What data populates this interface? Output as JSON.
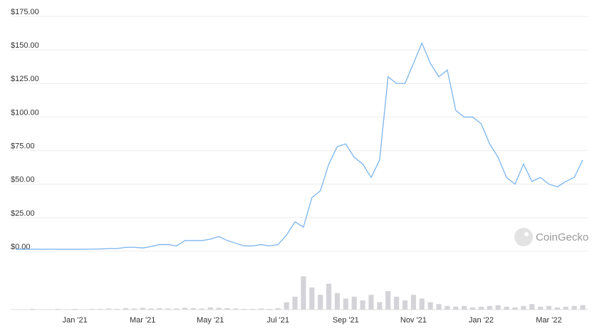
{
  "chart_data": {
    "type": "line",
    "categories": [
      null,
      null,
      null,
      null,
      null,
      null,
      null,
      "Jan '21",
      null,
      null,
      null,
      null,
      null,
      null,
      null,
      "Mar '21",
      null,
      null,
      null,
      null,
      null,
      null,
      null,
      "May '21",
      null,
      null,
      null,
      null,
      null,
      null,
      null,
      "Jul '21",
      null,
      null,
      null,
      null,
      null,
      null,
      null,
      "Sep '21",
      null,
      null,
      null,
      null,
      null,
      null,
      null,
      "Nov '21",
      null,
      null,
      null,
      null,
      null,
      null,
      null,
      "Jan '22",
      null,
      null,
      null,
      null,
      null,
      null,
      null,
      "Mar '22",
      null,
      null,
      null,
      null
    ],
    "values": [
      1.5,
      1.5,
      1.6,
      1.5,
      1.6,
      1.5,
      1.5,
      1.5,
      1.5,
      1.6,
      1.7,
      2,
      2,
      3,
      3,
      2.5,
      3.5,
      5,
      5,
      4,
      8,
      8,
      8,
      9,
      11,
      8,
      6,
      4,
      4,
      5,
      4,
      5,
      12,
      22,
      18,
      40,
      45,
      65,
      78,
      80,
      70,
      65,
      55,
      68,
      130,
      125,
      125,
      140,
      155,
      140,
      130,
      135,
      105,
      100,
      100,
      95,
      80,
      70,
      55,
      50,
      65,
      52,
      55,
      50,
      48,
      52,
      55,
      68
    ],
    "color": "#7cb5ec",
    "ylim": [
      0,
      175
    ],
    "yticks": [
      {
        "value": 0,
        "label": "$0.00"
      },
      {
        "value": 25,
        "label": "$25.00"
      },
      {
        "value": 50,
        "label": "$50.00"
      },
      {
        "value": 75,
        "label": "$75.00"
      },
      {
        "value": 100,
        "label": "$100.00"
      },
      {
        "value": 125,
        "label": "$125.00"
      },
      {
        "value": 150,
        "label": "$150.00"
      },
      {
        "value": 175,
        "label": "$175.00"
      }
    ],
    "grid": true,
    "volume": {
      "color": "#d4d4d8",
      "ylim": [
        0,
        100
      ],
      "values": [
        1,
        1,
        2,
        1,
        1,
        2,
        1,
        2,
        1,
        2,
        2,
        3,
        2,
        4,
        3,
        5,
        3,
        4,
        3,
        3,
        5,
        4,
        3,
        6,
        5,
        4,
        3,
        2,
        2,
        3,
        2,
        4,
        20,
        35,
        90,
        60,
        40,
        70,
        45,
        30,
        35,
        25,
        40,
        20,
        50,
        35,
        25,
        40,
        30,
        20,
        15,
        10,
        8,
        10,
        6,
        8,
        10,
        12,
        8,
        6,
        10,
        15,
        8,
        10,
        6,
        8,
        10,
        12
      ]
    },
    "watermark": "CoinGecko"
  }
}
